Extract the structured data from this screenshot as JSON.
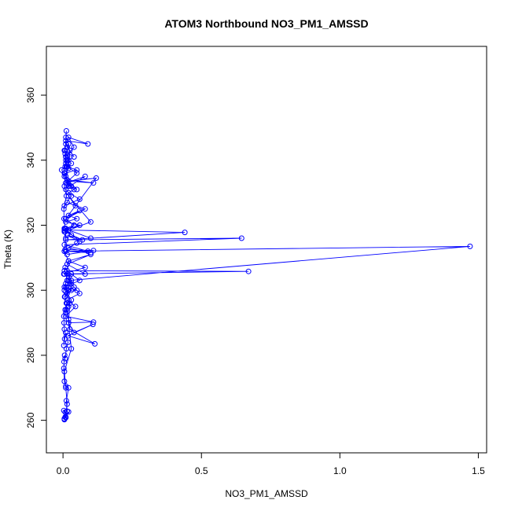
{
  "chart_data": {
    "type": "line",
    "title": "ATOM3 Northbound NO3_PM1_AMSSD",
    "xlabel": "NO3_PM1_AMSSD",
    "ylabel": "Theta (K)",
    "xlim": [
      -0.06,
      1.53
    ],
    "ylim": [
      250,
      375
    ],
    "x_ticks": [
      0.0,
      0.5,
      1.0,
      1.5
    ],
    "x_tick_labels": [
      "0.0",
      "0.5",
      "1.0",
      "1.5"
    ],
    "y_ticks": [
      260,
      280,
      300,
      320,
      340,
      360
    ],
    "y_tick_labels": [
      "260",
      "280",
      "300",
      "320",
      "340",
      "360"
    ],
    "grid": false,
    "color": "#0000ff",
    "marker": "open-circle",
    "series": [
      {
        "x": [
          0.005,
          0.01,
          0.003,
          0.008,
          0.015,
          0.012,
          0.02,
          0.01,
          0.005,
          0.003,
          0.004,
          0.006,
          0.008,
          0.012,
          0.018,
          0.01,
          0.006,
          0.003,
          0.005,
          0.004,
          0.003,
          0.008,
          0.012,
          0.01,
          0.02,
          0.03,
          0.015,
          0.01,
          0.008,
          0.03,
          0.025,
          0.015,
          0.03,
          0.022,
          0.005,
          0.008,
          0.03,
          0.018,
          0.006,
          0.015,
          0.012,
          0.02,
          0.025,
          0.115,
          0.018,
          0.108,
          0.04,
          0.02,
          0.11,
          0.01,
          0.045,
          0.015,
          0.06,
          0.03,
          0.005,
          0.08,
          0.015,
          0.1,
          0.02,
          0.08,
          0.003,
          0.67,
          0.015,
          0.06,
          0.005,
          0.05,
          0.01,
          0.04,
          0.02,
          1.47,
          0.01,
          0.1,
          0.02,
          0.05,
          0.008,
          0.11,
          0.015,
          0.09,
          0.005,
          0.645,
          0.01,
          0.44,
          0.02,
          0.1,
          0.005,
          0.06,
          0.015,
          0.07,
          0.008,
          0.04,
          0.01,
          0.03,
          0.005,
          0.06,
          0.01,
          0.05,
          0.02,
          0.06,
          0.01,
          0.08,
          0.015,
          0.045,
          0.02,
          0.1,
          0.005,
          0.04,
          0.01,
          0.12,
          0.02,
          0.11,
          0.015,
          0.05,
          0.025,
          0.08,
          0.01,
          0.04,
          0.02,
          0.06,
          0.005,
          0.03,
          0.01,
          0.02,
          0.008,
          0.05,
          0.015,
          0.03,
          0.01,
          0.04,
          0.02,
          0.09,
          0.01,
          0.015,
          0.04,
          0.025,
          0.01,
          0.005,
          0.015,
          0.02,
          0.01,
          0.008,
          -0.005,
          0.005,
          0.012,
          0.01,
          0.008,
          0.015,
          0.02,
          0.005,
          0.03,
          0.01,
          0.05,
          0.015,
          0.01,
          0.008,
          0.012,
          0.01,
          0.02,
          0.025,
          0.015,
          0.01,
          0.005,
          0.012,
          0.003,
          0.004,
          0.008,
          0.01,
          0.005,
          0.02,
          0.015,
          0.005,
          0.01,
          0.025,
          0.02,
          0.03,
          0.005,
          0.01,
          0.015,
          0.008,
          0.005,
          0.01,
          0.02,
          0.005
        ],
        "y": [
          260.2,
          261.0,
          263.0,
          262.5,
          262.8,
          266.0,
          270.0,
          270.5,
          272.0,
          276.0,
          278.0,
          280.0,
          279.0,
          282.0,
          284.0,
          287.0,
          285.0,
          283.0,
          288.0,
          290.0,
          292.0,
          294.0,
          296.0,
          293.0,
          295.0,
          297.0,
          299.0,
          301.0,
          298.0,
          300.0,
          302.0,
          303.0,
          305.0,
          304.0,
          306.0,
          307.0,
          303.0,
          300.0,
          298.0,
          296.0,
          294.0,
          291.0,
          288.0,
          283.5,
          286.0,
          289.5,
          287.0,
          290.0,
          290.2,
          292.0,
          295.0,
          297.0,
          299.0,
          302.0,
          305.0,
          305.0,
          308.0,
          311.0,
          309.0,
          307.0,
          305.0,
          305.8,
          306.0,
          303.0,
          301.0,
          300.0,
          299.5,
          301.0,
          303.0,
          313.5,
          312.0,
          311.5,
          313.0,
          314.5,
          312.5,
          312.2,
          311.0,
          312.0,
          314.0,
          316.0,
          315.5,
          317.8,
          318.5,
          316.0,
          319.0,
          315.0,
          317.0,
          315.5,
          318.0,
          320.0,
          319.0,
          317.0,
          318.5,
          320.0,
          321.0,
          322.0,
          323.0,
          324.5,
          322.0,
          325.0,
          327.0,
          326.0,
          329.0,
          321.0,
          318.0,
          320.0,
          322.0,
          334.5,
          333.5,
          333.0,
          334.0,
          331.0,
          332.0,
          335.0,
          333.0,
          331.0,
          330.0,
          328.0,
          326.0,
          329.0,
          331.0,
          332.0,
          336.0,
          337.0,
          338.0,
          339.0,
          341.0,
          344.0,
          347.0,
          345.0,
          346.0,
          344.0,
          341.0,
          343.0,
          345.0,
          343.0,
          341.5,
          340.0,
          341.0,
          338.0,
          337.0,
          336.0,
          338.0,
          339.0,
          342.0,
          340.0,
          337.5,
          335.0,
          332.0,
          333.0,
          336.0,
          338.0,
          340.0,
          343.0,
          349.0,
          347.0,
          345.0,
          341.0,
          338.0,
          335.0,
          332.0,
          329.0,
          325.0,
          322.0,
          319.0,
          316.0,
          312.0,
          309.0,
          305.0,
          300.0,
          302.0,
          296.0,
          290.0,
          282.0,
          275.0,
          270.0,
          265.0,
          261.0,
          260.5,
          260.8,
          262.6,
          260.4
        ]
      }
    ]
  }
}
